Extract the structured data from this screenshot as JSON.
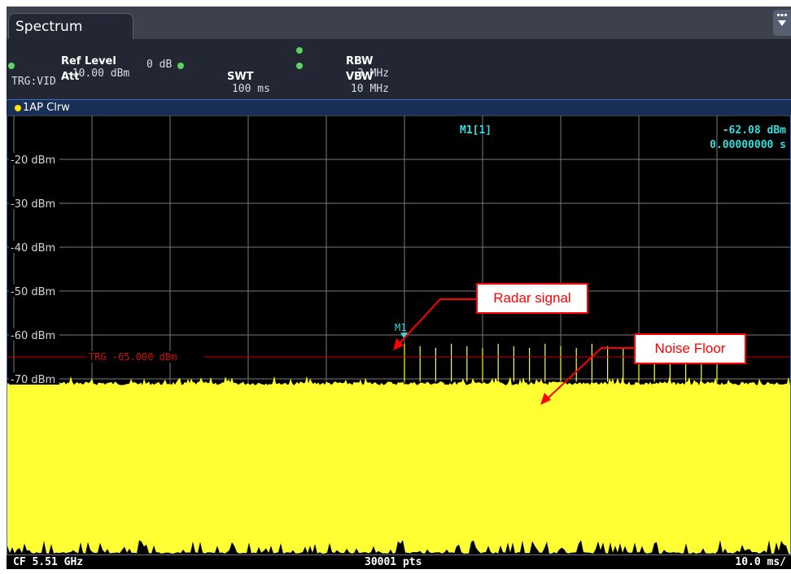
{
  "window": {
    "tab_title": "Spectrum"
  },
  "settings": {
    "ref_level_label": "Ref Level",
    "ref_level_value": "-10.00 dBm",
    "att_label": "Att",
    "att_value": "0 dB",
    "swt_label": "SWT",
    "swt_value": "100 ms",
    "rbw_label": "RBW",
    "rbw_value": "3 MHz",
    "vbw_label": "VBW",
    "vbw_value": "10 MHz",
    "trigger": "TRG:VID"
  },
  "trace": {
    "label": "1AP Clrw",
    "color": "#ffff33"
  },
  "marker": {
    "name": "M1",
    "readout_name": "M1[1]",
    "readout_level": "-62.08 dBm",
    "readout_time": "0.00000000 s",
    "level_dbm": -62.08,
    "time_ms": 0
  },
  "trigger_line": {
    "label": "TRG -65.000 dBm",
    "level_dbm": -65
  },
  "annotations": {
    "radar": "Radar signal",
    "noise": "Noise Floor"
  },
  "footer": {
    "center_freq": "CF 5.51 GHz",
    "points": "30001 pts",
    "time_per_div": "10.0 ms/"
  },
  "chart_data": {
    "type": "line",
    "title": "",
    "xlabel": "",
    "ylabel": "",
    "y_ticks": [
      {
        "value": -20,
        "label": "-20 dBm"
      },
      {
        "value": -30,
        "label": "-30 dBm"
      },
      {
        "value": -40,
        "label": "-40 dBm"
      },
      {
        "value": -50,
        "label": "-50 dBm"
      },
      {
        "value": -60,
        "label": "-60 dBm"
      },
      {
        "value": -70,
        "label": "-70 dBm"
      }
    ],
    "ylim": [
      -110,
      -10
    ],
    "xlim_ms": [
      -50,
      50
    ],
    "grid": true,
    "noise_floor_dbm": -71,
    "pulse_peak_dbm": -62,
    "pulse_times_ms": [
      0,
      2,
      4,
      6,
      8,
      10,
      12,
      14,
      16,
      18,
      20,
      22,
      24,
      26,
      28,
      30,
      32,
      34,
      36,
      38,
      40
    ]
  }
}
